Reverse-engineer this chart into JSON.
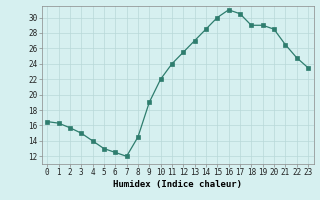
{
  "x": [
    0,
    1,
    2,
    3,
    4,
    5,
    6,
    7,
    8,
    9,
    10,
    11,
    12,
    13,
    14,
    15,
    16,
    17,
    18,
    19,
    20,
    21,
    22,
    23
  ],
  "y": [
    16.5,
    16.3,
    15.7,
    15.0,
    14.0,
    13.0,
    12.5,
    12.0,
    14.5,
    19.0,
    22.0,
    24.0,
    25.5,
    27.0,
    28.5,
    30.0,
    31.0,
    30.5,
    29.0,
    29.0,
    28.5,
    26.5,
    24.8,
    23.5
  ],
  "line_color": "#2e7d6e",
  "marker": "s",
  "marker_size": 2.5,
  "bg_color": "#d6f0f0",
  "grid_color": "#b8d8d8",
  "xlabel": "Humidex (Indice chaleur)",
  "xlim": [
    -0.5,
    23.5
  ],
  "ylim": [
    11,
    31.5
  ],
  "yticks": [
    12,
    14,
    16,
    18,
    20,
    22,
    24,
    26,
    28,
    30
  ],
  "xticks": [
    0,
    1,
    2,
    3,
    4,
    5,
    6,
    7,
    8,
    9,
    10,
    11,
    12,
    13,
    14,
    15,
    16,
    17,
    18,
    19,
    20,
    21,
    22,
    23
  ],
  "tick_fontsize": 5.5,
  "xlabel_fontsize": 6.5
}
